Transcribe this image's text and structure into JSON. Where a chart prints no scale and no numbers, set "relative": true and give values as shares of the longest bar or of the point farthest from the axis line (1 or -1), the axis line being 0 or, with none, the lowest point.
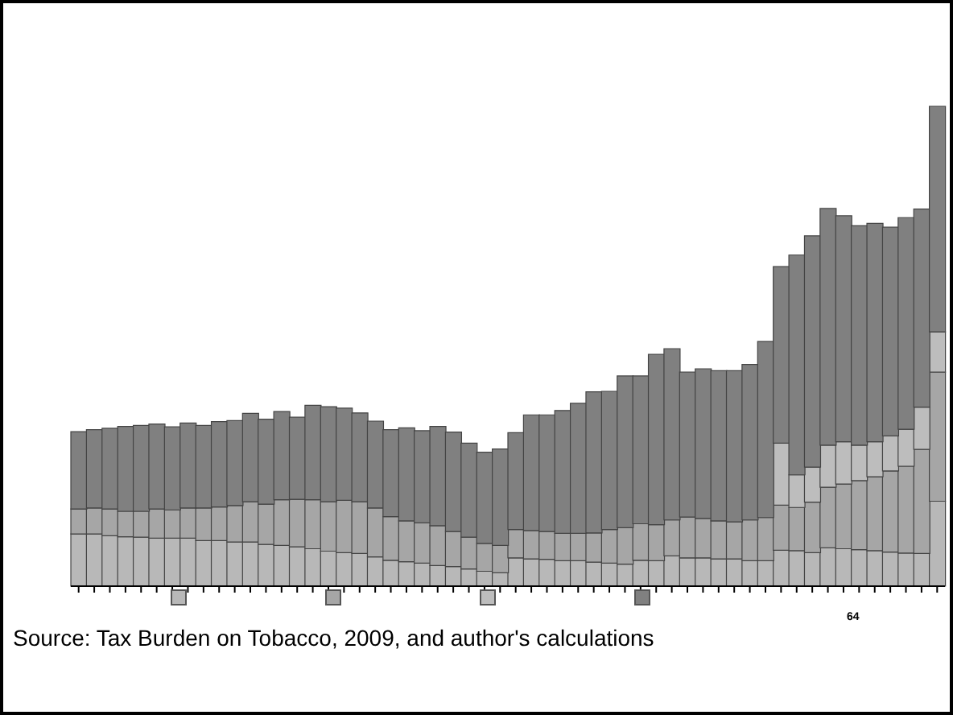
{
  "chart_data": {
    "type": "bar",
    "stacked": true,
    "relative": true,
    "categories": [
      null,
      null,
      null,
      null,
      null,
      null,
      null,
      null,
      null,
      null,
      null,
      null,
      null,
      null,
      null,
      null,
      null,
      null,
      null,
      null,
      null,
      null,
      null,
      null,
      null,
      null,
      null,
      null,
      null,
      null,
      null,
      null,
      null,
      null,
      null,
      null,
      null,
      null,
      null,
      null,
      null,
      null,
      null,
      null,
      null,
      null,
      null,
      null,
      null,
      null,
      null,
      null,
      null,
      null,
      null,
      null
    ],
    "series": [
      {
        "color": "#b8b8b8",
        "values": [
          0.109,
          0.109,
          0.105,
          0.103,
          0.102,
          0.1,
          0.1,
          0.1,
          0.095,
          0.095,
          0.092,
          0.092,
          0.087,
          0.085,
          0.082,
          0.078,
          0.073,
          0.07,
          0.068,
          0.061,
          0.054,
          0.051,
          0.048,
          0.043,
          0.041,
          0.036,
          0.031,
          0.028,
          0.059,
          0.057,
          0.056,
          0.053,
          0.053,
          0.05,
          0.048,
          0.046,
          0.054,
          0.053,
          0.063,
          0.059,
          0.059,
          0.057,
          0.057,
          0.053,
          0.053,
          0.075,
          0.074,
          0.07,
          0.08,
          0.078,
          0.076,
          0.074,
          0.071,
          0.069,
          0.068,
          0.177
        ]
      },
      {
        "color": "#a6a6a6",
        "values": [
          0.052,
          0.054,
          0.056,
          0.053,
          0.054,
          0.061,
          0.059,
          0.063,
          0.068,
          0.07,
          0.076,
          0.084,
          0.084,
          0.095,
          0.099,
          0.102,
          0.103,
          0.109,
          0.108,
          0.102,
          0.091,
          0.085,
          0.084,
          0.083,
          0.073,
          0.066,
          0.058,
          0.057,
          0.059,
          0.059,
          0.058,
          0.057,
          0.057,
          0.061,
          0.07,
          0.076,
          0.076,
          0.075,
          0.075,
          0.085,
          0.082,
          0.079,
          0.077,
          0.085,
          0.09,
          0.094,
          0.09,
          0.105,
          0.126,
          0.135,
          0.144,
          0.154,
          0.169,
          0.181,
          0.217,
          0.269
        ]
      },
      {
        "color": "#bdbdbd",
        "values": [
          0,
          0,
          0,
          0,
          0,
          0,
          0,
          0,
          0,
          0,
          0,
          0,
          0,
          0,
          0,
          0,
          0,
          0,
          0,
          0,
          0,
          0,
          0,
          0,
          0,
          0,
          0,
          0,
          0,
          0,
          0,
          0,
          0,
          0,
          0,
          0,
          0,
          0,
          0,
          0,
          0,
          0,
          0,
          0,
          0,
          0.129,
          0.068,
          0.073,
          0.088,
          0.088,
          0.074,
          0.073,
          0.073,
          0.077,
          0.088,
          0.084
        ]
      },
      {
        "color": "#808080",
        "values": [
          0.161,
          0.163,
          0.168,
          0.177,
          0.179,
          0.177,
          0.173,
          0.177,
          0.172,
          0.178,
          0.177,
          0.184,
          0.177,
          0.184,
          0.171,
          0.197,
          0.198,
          0.192,
          0.185,
          0.181,
          0.181,
          0.194,
          0.192,
          0.207,
          0.207,
          0.196,
          0.19,
          0.201,
          0.202,
          0.241,
          0.243,
          0.256,
          0.271,
          0.294,
          0.288,
          0.316,
          0.308,
          0.355,
          0.357,
          0.302,
          0.312,
          0.313,
          0.315,
          0.324,
          0.367,
          0.368,
          0.458,
          0.482,
          0.493,
          0.471,
          0.457,
          0.455,
          0.435,
          0.441,
          0.413,
          0.47
        ]
      }
    ],
    "annotations": [
      "Source: Tax Burden on Tobacco, 2009, and author's calculations",
      "64"
    ]
  }
}
